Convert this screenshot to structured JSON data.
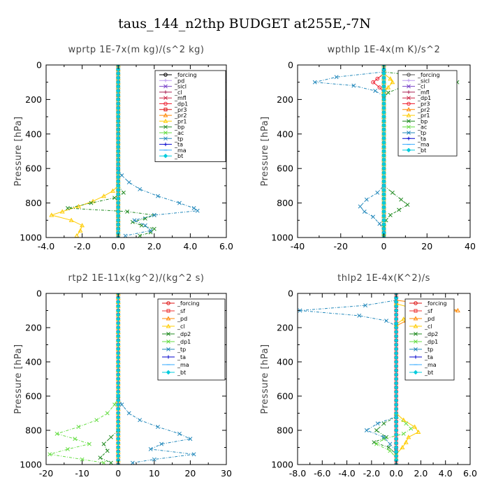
{
  "figure_title": "taus_144_n2thp  BUDGET at255E,-7N",
  "chart_data": [
    {
      "type": "line",
      "title": "wprtp  1E-7x(m kg)/(s^2 kg)",
      "ylabel": "Pressure [hPa]",
      "xlim": [
        -4,
        6
      ],
      "ylim": [
        1000,
        0
      ],
      "xticks": [
        "-4.0",
        "-2.0",
        "0.0",
        "2.0",
        "4.0",
        "6.0"
      ],
      "xtick_values": [
        -4,
        -2,
        0,
        2,
        4,
        6
      ],
      "yticks": [
        "0",
        "200",
        "400",
        "600",
        "800",
        "1000"
      ],
      "ytick_values": [
        0,
        200,
        400,
        600,
        800,
        1000
      ],
      "legend_position": "top-right",
      "series": [
        {
          "name": "_forcing",
          "color": "#000000",
          "marker": "circle"
        },
        {
          "name": "_pd",
          "color": "#bb99ee",
          "marker": "plus"
        },
        {
          "name": "_sicl",
          "color": "#7a44c8",
          "marker": "cross"
        },
        {
          "name": "_cl",
          "color": "#aa2255",
          "marker": "plus"
        },
        {
          "name": "_mfl",
          "color": "#cc2244",
          "marker": "cross"
        },
        {
          "name": "_dp1",
          "color": "#ee2233",
          "marker": "circle"
        },
        {
          "name": "_pr3",
          "color": "#dd1111",
          "marker": "square"
        },
        {
          "name": "_pr2",
          "color": "#ff8800",
          "marker": "triangle"
        },
        {
          "name": "_pr1",
          "color": "#ffcc00",
          "marker": "triangle",
          "y": [
            700,
            730,
            760,
            790,
            820,
            850,
            870,
            900,
            930,
            960,
            990
          ],
          "x": [
            0,
            -0.3,
            -0.8,
            -1.4,
            -2.2,
            -3.1,
            -3.7,
            -2.6,
            -2.0,
            -2.1,
            -2.3
          ]
        },
        {
          "name": "_bp",
          "color": "#228b22",
          "marker": "cross",
          "y": [
            700,
            740,
            770,
            800,
            830,
            850,
            870,
            890,
            910,
            930,
            950,
            970,
            990
          ],
          "x": [
            0,
            0.3,
            -0.2,
            -1.5,
            -2.8,
            0.5,
            2.0,
            1.5,
            0.8,
            1.3,
            2.0,
            1.8,
            1.2
          ]
        },
        {
          "name": "_ac",
          "color": "#66dd44",
          "marker": "cross"
        },
        {
          "name": "_tp",
          "color": "#2288bb",
          "marker": "cross",
          "y": [
            600,
            640,
            680,
            720,
            760,
            800,
            830,
            845,
            870,
            900,
            930,
            960,
            990
          ],
          "x": [
            0,
            0.2,
            0.6,
            1.2,
            2.2,
            3.4,
            4.2,
            4.4,
            2.0,
            0.9,
            1.5,
            1.8,
            0.4
          ]
        },
        {
          "name": "_ta",
          "color": "#0000cc",
          "marker": "plus"
        },
        {
          "name": "_ma",
          "color": "#33aaff",
          "marker": "dash"
        },
        {
          "name": "_bt",
          "color": "#00ccdd",
          "marker": "diamond"
        }
      ]
    },
    {
      "type": "line",
      "title": "wpthlp  1E-4x(m K)/s^2",
      "ylabel": "Pressure [hPa]",
      "xlim": [
        -40,
        40
      ],
      "ylim": [
        1000,
        0
      ],
      "xticks": [
        "-40",
        "-20",
        "0",
        "20",
        "40"
      ],
      "xtick_values": [
        -40,
        -20,
        0,
        20,
        40
      ],
      "yticks": [
        "0",
        "200",
        "400",
        "600",
        "800",
        "1000"
      ],
      "ytick_values": [
        0,
        200,
        400,
        600,
        800,
        1000
      ],
      "legend_position": "top-right",
      "series": [
        {
          "name": "_forcing",
          "color": "#555555",
          "marker": "circle"
        },
        {
          "name": "_sicl",
          "color": "#bb99ee",
          "marker": "plus"
        },
        {
          "name": "_cl",
          "color": "#7a44c8",
          "marker": "cross"
        },
        {
          "name": "_mfl",
          "color": "#aa2255",
          "marker": "plus"
        },
        {
          "name": "_dp1",
          "color": "#cc2244",
          "marker": "cross"
        },
        {
          "name": "_pr3",
          "color": "#ee2233",
          "marker": "circle",
          "y": [
            50,
            80,
            100,
            130,
            160
          ],
          "x": [
            0,
            -3,
            -5,
            -2,
            0
          ]
        },
        {
          "name": "_pr2",
          "color": "#ff8800",
          "marker": "triangle"
        },
        {
          "name": "_pr1",
          "color": "#ffcc00",
          "marker": "triangle",
          "y": [
            50,
            80,
            100,
            130,
            160
          ],
          "x": [
            0,
            3,
            4,
            2,
            0
          ]
        },
        {
          "name": "_bp",
          "color": "#228b22",
          "marker": "cross",
          "y": [
            40,
            70,
            100,
            130,
            160,
            190,
            700,
            740,
            780,
            810,
            840,
            870,
            900,
            940,
            980
          ],
          "x": [
            0,
            20,
            34,
            8,
            2,
            0,
            0,
            4,
            8,
            11,
            7,
            3,
            1,
            0,
            0
          ]
        },
        {
          "name": "_ac",
          "color": "#66dd44",
          "marker": "cross"
        },
        {
          "name": "_tp",
          "color": "#2288bb",
          "marker": "cross",
          "y": [
            40,
            70,
            100,
            120,
            150,
            180,
            700,
            740,
            780,
            820,
            850,
            880,
            920,
            960
          ],
          "x": [
            0,
            -22,
            -32,
            -14,
            -4,
            0,
            0,
            -3,
            -8,
            -11,
            -9,
            -5,
            -2,
            0
          ]
        },
        {
          "name": "_ta",
          "color": "#0000cc",
          "marker": "plus"
        },
        {
          "name": "_ma",
          "color": "#33aaff",
          "marker": "dash"
        },
        {
          "name": "_bt",
          "color": "#00ccdd",
          "marker": "diamond"
        }
      ]
    },
    {
      "type": "line",
      "title": "rtp2  1E-11x(kg^2)/(kg^2 s)",
      "ylabel": "Pressure [hPa]",
      "xlim": [
        -20,
        30
      ],
      "ylim": [
        1000,
        0
      ],
      "xticks": [
        "-20",
        "-10",
        "0",
        "10",
        "20",
        "30"
      ],
      "xtick_values": [
        -20,
        -10,
        0,
        10,
        20,
        30
      ],
      "yticks": [
        "0",
        "200",
        "400",
        "600",
        "800",
        "1000"
      ],
      "ytick_values": [
        0,
        200,
        400,
        600,
        800,
        1000
      ],
      "legend_position": "top-right",
      "series": [
        {
          "name": "_forcing",
          "color": "#dd1111",
          "marker": "circle"
        },
        {
          "name": "_sf",
          "color": "#ee3333",
          "marker": "square"
        },
        {
          "name": "_pd",
          "color": "#ff8800",
          "marker": "triangle"
        },
        {
          "name": "_cl",
          "color": "#ffcc00",
          "marker": "triangle"
        },
        {
          "name": "_dp2",
          "color": "#228b22",
          "marker": "cross",
          "y": [
            800,
            840,
            880,
            920,
            960,
            990
          ],
          "x": [
            0,
            -2,
            -4,
            -3,
            -5,
            -2
          ]
        },
        {
          "name": "_dp1",
          "color": "#66dd44",
          "marker": "cross",
          "y": [
            600,
            650,
            700,
            740,
            780,
            820,
            850,
            880,
            910,
            940,
            970,
            990
          ],
          "x": [
            0,
            -1,
            -3,
            -6,
            -11,
            -17,
            -12,
            -8,
            -14,
            -19,
            -10,
            -4
          ]
        },
        {
          "name": "_tp",
          "color": "#2288bb",
          "marker": "cross",
          "y": [
            600,
            650,
            700,
            740,
            780,
            820,
            850,
            880,
            910,
            940,
            970,
            990
          ],
          "x": [
            0,
            1,
            3,
            6,
            11,
            17,
            20,
            12,
            9,
            21,
            10,
            4
          ]
        },
        {
          "name": "_ta",
          "color": "#0000cc",
          "marker": "plus"
        },
        {
          "name": "_ma",
          "color": "#33aaff",
          "marker": "dash"
        },
        {
          "name": "_bt",
          "color": "#00ccdd",
          "marker": "diamond"
        }
      ]
    },
    {
      "type": "line",
      "title": "thlp2  1E-4x(K^2)/s",
      "ylabel": "Pressure [hPa]",
      "xlim": [
        -8,
        6
      ],
      "ylim": [
        1000,
        0
      ],
      "xticks": [
        "-8.0",
        "-6.0",
        "-4.0",
        "-2.0",
        "0.0",
        "2.0",
        "4.0",
        "6.0"
      ],
      "xtick_values": [
        -8,
        -6,
        -4,
        -2,
        0,
        2,
        4,
        6
      ],
      "yticks": [
        "0",
        "200",
        "400",
        "600",
        "800",
        "1000"
      ],
      "ytick_values": [
        0,
        200,
        400,
        600,
        800,
        1000
      ],
      "legend_position": "top-right",
      "series": [
        {
          "name": "_forcing",
          "color": "#dd1111",
          "marker": "circle"
        },
        {
          "name": "_sf",
          "color": "#ee3333",
          "marker": "square"
        },
        {
          "name": "_pd",
          "color": "#ff8800",
          "marker": "triangle",
          "y": [
            40,
            70,
            100,
            130,
            160,
            190
          ],
          "x": [
            0,
            3.2,
            5.0,
            2.0,
            0.8,
            0
          ]
        },
        {
          "name": "_cl",
          "color": "#ffcc00",
          "marker": "triangle",
          "y": [
            60,
            90,
            120,
            150,
            180,
            700,
            740,
            780,
            810,
            840,
            870,
            900,
            940
          ],
          "x": [
            0,
            1.5,
            1.8,
            0.6,
            0,
            0,
            0.6,
            1.5,
            1.8,
            1.0,
            0.8,
            0.5,
            0
          ]
        },
        {
          "name": "_dp2",
          "color": "#228b22",
          "marker": "cross",
          "y": [
            720,
            760,
            800,
            840,
            870,
            900,
            940
          ],
          "x": [
            0,
            -1.0,
            -1.6,
            -0.8,
            -1.8,
            -0.6,
            0
          ]
        },
        {
          "name": "_dp1",
          "color": "#66dd44",
          "marker": "cross",
          "y": [
            720,
            760,
            790,
            820,
            850,
            880,
            920,
            960
          ],
          "x": [
            0,
            0.8,
            1.2,
            0.6,
            -1.0,
            -1.6,
            -0.5,
            0
          ]
        },
        {
          "name": "_tp",
          "color": "#2288bb",
          "marker": "cross",
          "y": [
            40,
            70,
            100,
            130,
            160,
            190,
            720,
            760,
            800,
            840,
            880,
            920
          ],
          "x": [
            0,
            -2.5,
            -7.8,
            -3.0,
            -0.8,
            0,
            0,
            -1.5,
            -2.4,
            -1.0,
            -0.5,
            0
          ]
        },
        {
          "name": "_ta",
          "color": "#0000cc",
          "marker": "plus"
        },
        {
          "name": "_ma",
          "color": "#33aaff",
          "marker": "dash"
        },
        {
          "name": "_bt",
          "color": "#00ccdd",
          "marker": "diamond"
        }
      ]
    }
  ]
}
